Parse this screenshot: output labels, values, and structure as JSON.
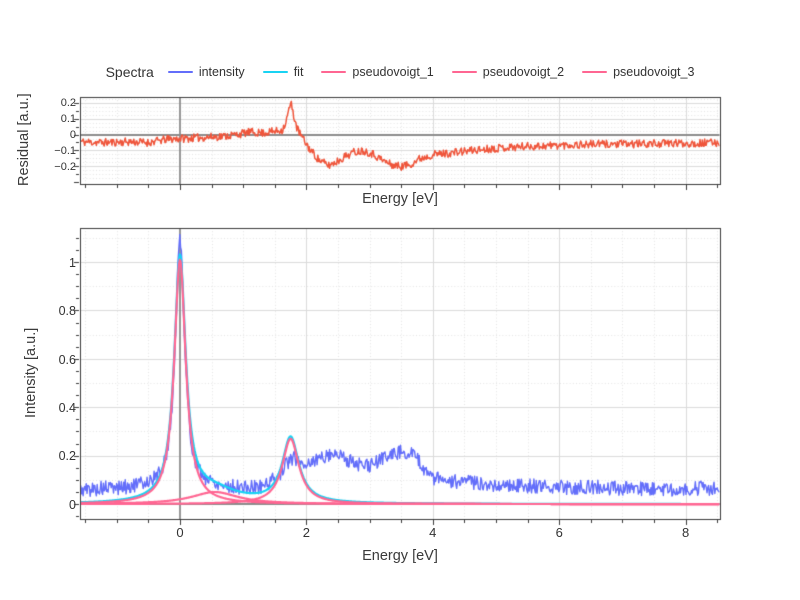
{
  "legend": {
    "title": "Spectra",
    "items": [
      {
        "label": "intensity",
        "color": "#636EFA"
      },
      {
        "label": "fit",
        "color": "#19D3F3"
      },
      {
        "label": "pseudovoigt_1",
        "color": "#FF6692"
      },
      {
        "label": "pseudovoigt_2",
        "color": "#FF6692"
      },
      {
        "label": "pseudovoigt_3",
        "color": "#FF6692"
      }
    ]
  },
  "style": {
    "background": "#FFFFFF",
    "axis_line_color": "#3A3A3A",
    "zeroline_color": "#8C8C8C",
    "grid_major_color": "#DBDBDB",
    "grid_minor_color": "#E4E4E4",
    "tick_color": "#3A3A3A",
    "text_color": "#333333"
  },
  "chart_data": {
    "charts": [
      {
        "id": "residual",
        "type": "line",
        "title": "",
        "xlabel": "Energy [eV]",
        "ylabel": "Residual [a.u.]",
        "xlim": [
          -1.582,
          8.536
        ],
        "ylim": [
          -0.31,
          0.235
        ],
        "x_major_ticks": [
          0,
          2,
          4,
          6,
          8
        ],
        "x_tick_labels": [],
        "x_minor_step": 0.5,
        "y_major_ticks": [
          0.2,
          0.1,
          0,
          -0.1,
          -0.2
        ],
        "y_tick_labels": [
          "0.2",
          "0.1",
          "0",
          "−0.1",
          "−0.2"
        ],
        "y_tick_minor_step": 0.05,
        "y_grid_minor_step": 0.025,
        "zeroline": true,
        "vline_x": 0,
        "grid": true,
        "legend_position": "none",
        "series": [
          {
            "name": "residual",
            "color": "#EF553B",
            "width": 1.5,
            "style": "noisy",
            "noise_amp": 0.025,
            "seed": 11,
            "peaks": [],
            "mean_anchors": [
              [
                -1.6,
                -0.045
              ],
              [
                -1.2,
                -0.05
              ],
              [
                -0.8,
                -0.045
              ],
              [
                -0.5,
                -0.05
              ],
              [
                -0.2,
                -0.03
              ],
              [
                0.0,
                -0.025
              ],
              [
                0.3,
                -0.02
              ],
              [
                0.5,
                -0.015
              ],
              [
                0.7,
                -0.01
              ],
              [
                0.9,
                0.0
              ],
              [
                1.1,
                0.015
              ],
              [
                1.3,
                0.01
              ],
              [
                1.5,
                0.02
              ],
              [
                1.62,
                0.03
              ],
              [
                1.68,
                0.08
              ],
              [
                1.73,
                0.17
              ],
              [
                1.76,
                0.19
              ],
              [
                1.8,
                0.12
              ],
              [
                1.85,
                0.04
              ],
              [
                1.95,
                -0.03
              ],
              [
                2.05,
                -0.09
              ],
              [
                2.2,
                -0.16
              ],
              [
                2.35,
                -0.195
              ],
              [
                2.5,
                -0.165
              ],
              [
                2.6,
                -0.14
              ],
              [
                2.75,
                -0.11
              ],
              [
                2.9,
                -0.1
              ],
              [
                3.05,
                -0.12
              ],
              [
                3.2,
                -0.16
              ],
              [
                3.35,
                -0.19
              ],
              [
                3.5,
                -0.2
              ],
              [
                3.65,
                -0.185
              ],
              [
                3.8,
                -0.15
              ],
              [
                4.0,
                -0.125
              ],
              [
                4.3,
                -0.115
              ],
              [
                4.6,
                -0.1
              ],
              [
                5.0,
                -0.085
              ],
              [
                5.4,
                -0.075
              ],
              [
                5.8,
                -0.07
              ],
              [
                6.2,
                -0.065
              ],
              [
                6.6,
                -0.06
              ],
              [
                7.0,
                -0.06
              ],
              [
                7.4,
                -0.058
              ],
              [
                7.8,
                -0.055
              ],
              [
                8.2,
                -0.055
              ],
              [
                8.54,
                -0.05
              ]
            ]
          }
        ]
      },
      {
        "id": "spectra",
        "type": "line",
        "title": "",
        "xlabel": "Energy [eV]",
        "ylabel": "Intensity [a.u.]",
        "xlim": [
          -1.582,
          8.536
        ],
        "ylim": [
          -0.0615,
          1.1405
        ],
        "x_major_ticks": [
          0,
          2,
          4,
          6,
          8
        ],
        "x_tick_labels": [
          "0",
          "2",
          "4",
          "6",
          "8"
        ],
        "x_minor_step": 0.5,
        "y_major_ticks": [
          1,
          0.8,
          0.6,
          0.4,
          0.2,
          0
        ],
        "y_tick_labels": [
          "1",
          "0.8",
          "0.6",
          "0.4",
          "0.2",
          "0"
        ],
        "y_tick_minor_step": 0.05,
        "y_grid_minor_step": 0.1,
        "zeroline": true,
        "vline_x": 0,
        "grid": true,
        "legend_position": "top-center",
        "series": [
          {
            "name": "intensity",
            "color": "#636EFA",
            "width": 1.4,
            "style": "noisy",
            "noise_amp": 0.03,
            "seed": 5,
            "peaks": [
              {
                "amplitude": 1.05,
                "center": 0.0,
                "gamma": 0.09
              }
            ],
            "mean_anchors": [
              [
                -1.6,
                0.055
              ],
              [
                -1.2,
                0.06
              ],
              [
                -0.8,
                0.06
              ],
              [
                -0.5,
                0.065
              ],
              [
                -0.2,
                0.05
              ],
              [
                0.2,
                0.05
              ],
              [
                0.5,
                0.065
              ],
              [
                0.8,
                0.06
              ],
              [
                1.1,
                0.06
              ],
              [
                1.3,
                0.07
              ],
              [
                1.5,
                0.1
              ],
              [
                1.6,
                0.13
              ],
              [
                1.7,
                0.17
              ],
              [
                1.8,
                0.19
              ],
              [
                1.9,
                0.17
              ],
              [
                2.0,
                0.165
              ],
              [
                2.15,
                0.18
              ],
              [
                2.3,
                0.2
              ],
              [
                2.45,
                0.21
              ],
              [
                2.6,
                0.19
              ],
              [
                2.75,
                0.17
              ],
              [
                2.9,
                0.155
              ],
              [
                3.05,
                0.16
              ],
              [
                3.2,
                0.19
              ],
              [
                3.4,
                0.21
              ],
              [
                3.55,
                0.22
              ],
              [
                3.7,
                0.2
              ],
              [
                3.85,
                0.15
              ],
              [
                4.0,
                0.11
              ],
              [
                4.2,
                0.095
              ],
              [
                4.5,
                0.09
              ],
              [
                5.0,
                0.08
              ],
              [
                5.5,
                0.075
              ],
              [
                6.0,
                0.07
              ],
              [
                6.5,
                0.07
              ],
              [
                7.0,
                0.065
              ],
              [
                7.5,
                0.06
              ],
              [
                8.0,
                0.065
              ],
              [
                8.54,
                0.065
              ]
            ]
          },
          {
            "name": "fit",
            "color": "#19D3F3",
            "width": 2.2,
            "style": "sum_of_peaks"
          },
          {
            "name": "pseudovoigt_1",
            "color": "#FF6692",
            "width": 2.2,
            "style": "peak",
            "peak": {
              "amplitude": 1.01,
              "center": 0.0,
              "gamma": 0.11
            }
          },
          {
            "name": "pseudovoigt_2",
            "color": "#FF6692",
            "width": 2.2,
            "style": "peak",
            "peak": {
              "amplitude": 0.27,
              "center": 1.75,
              "gamma": 0.16
            }
          },
          {
            "name": "pseudovoigt_3",
            "color": "#FF6692",
            "width": 2.2,
            "style": "peak",
            "peak": {
              "amplitude": 0.05,
              "center": 0.55,
              "gamma": 0.45
            }
          }
        ]
      }
    ]
  }
}
